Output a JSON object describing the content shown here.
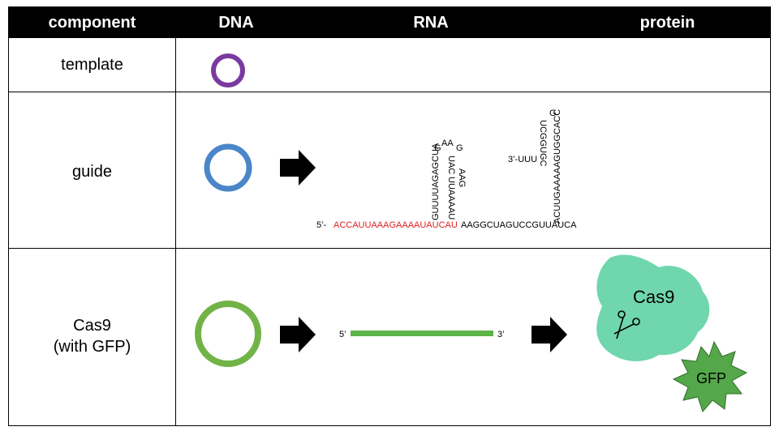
{
  "header": {
    "col_component": "component",
    "col_dna": "DNA",
    "col_rna": "RNA",
    "col_protein": "protein"
  },
  "rows": {
    "template": {
      "label": "template"
    },
    "guide": {
      "label": "guide"
    },
    "cas9": {
      "label_line1": "Cas9",
      "label_line2": "(with GFP)"
    }
  },
  "guide_rna": {
    "five_prime": "5’-",
    "spacer": "ACCAUUAAAGAAAAUAUCAU",
    "stem_left": "GUUUUAGAGCUA",
    "stem_left_top": "G",
    "loop_aa": "AA",
    "loop_g": "G",
    "stem_right_a": "UAC",
    "stem_right_b": "UUAAAAU",
    "bulge": "AAG",
    "linker": "AAGGCUAGUCCGUUAUCA",
    "hairpin_up": "ACUUGAAAAAGUGGCACC",
    "hairpin_top": "G",
    "hairpin_down": "UCGGUGC",
    "three_prime": "3’-UUU"
  },
  "mrna": {
    "five_prime": "5’",
    "three_prime": "3’"
  },
  "protein": {
    "cas9_label": "Cas9",
    "gfp_label": "GFP"
  },
  "colors": {
    "template_ring": "#7b3aa0",
    "guide_ring": "#4a86c8",
    "cas9_ring": "#72b347",
    "mrna_bar": "#5cb347",
    "spacer_red": "#e02020",
    "cas9_protein": "#6fd6ad",
    "gfp_star": "#55a84a"
  }
}
